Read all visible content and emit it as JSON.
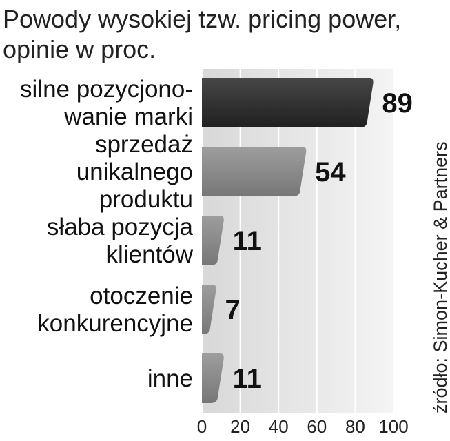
{
  "chart_data": {
    "type": "hbar",
    "title": "Powody wysokiej tzw. pricing power,\nopinie  w proc.",
    "source": "źródło: Simon-Kucher & Partners",
    "categories": [
      "silne pozycjono-\nwanie marki",
      "sprzedaż\nunikalnego\nproduktu",
      "słaba pozycja\nklientów",
      "otoczenie\nkonkurencyjne",
      "inne"
    ],
    "values": [
      89,
      54,
      11,
      7,
      11
    ],
    "colors": [
      "#262626",
      "#8c8c8c",
      "#8c8c8c",
      "#8c8c8c",
      "#8c8c8c"
    ],
    "xlim": [
      0,
      100
    ],
    "xticks": [
      0,
      20,
      40,
      60,
      80,
      100
    ],
    "grid": true
  }
}
